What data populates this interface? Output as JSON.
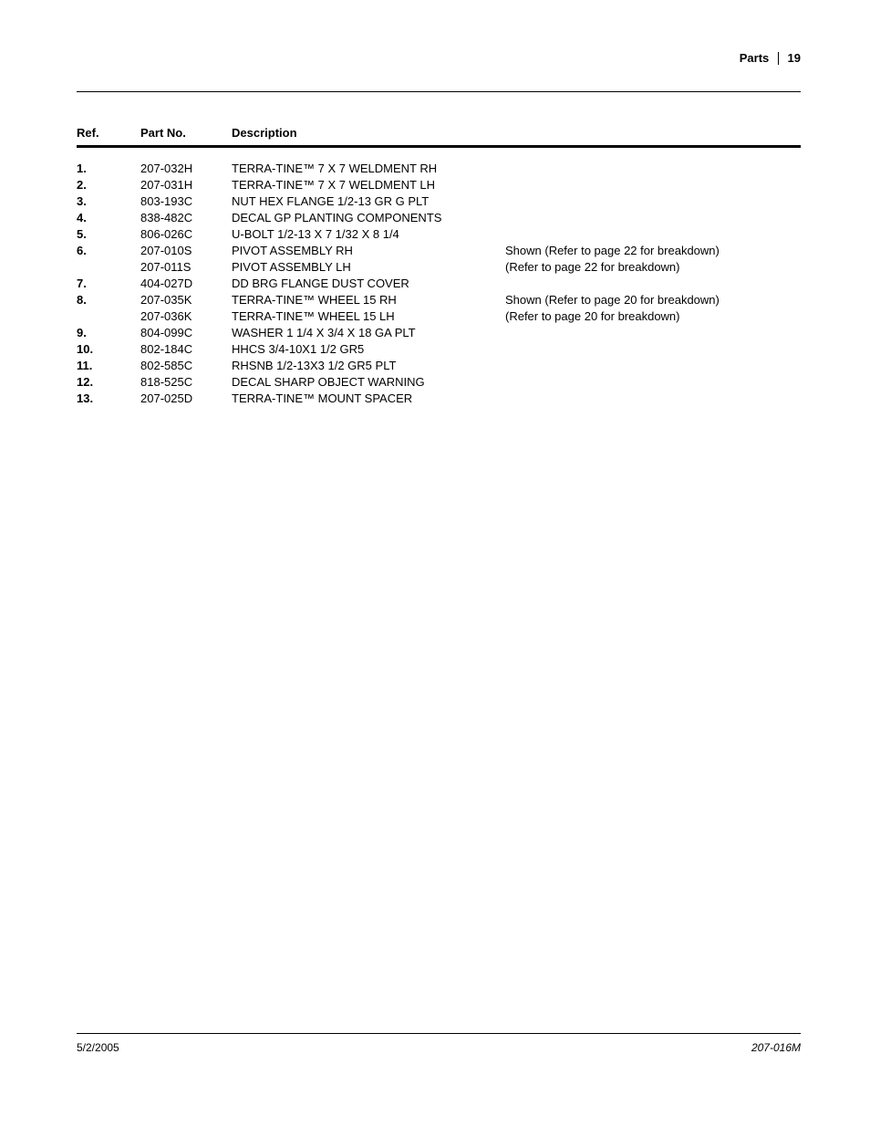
{
  "header": {
    "section": "Parts",
    "page": "19"
  },
  "columns": {
    "ref": "Ref.",
    "part": "Part No.",
    "desc": "Description"
  },
  "rows": [
    {
      "ref": "1.",
      "part": "207-032H",
      "desc": "TERRA-TINE™ 7 X 7 WELDMENT RH",
      "note": ""
    },
    {
      "ref": "2.",
      "part": "207-031H",
      "desc": "TERRA-TINE™ 7 X 7 WELDMENT LH",
      "note": ""
    },
    {
      "ref": "3.",
      "part": "803-193C",
      "desc": "NUT HEX FLANGE 1/2-13 GR G PLT",
      "note": ""
    },
    {
      "ref": "4.",
      "part": "838-482C",
      "desc": "DECAL GP PLANTING COMPONENTS",
      "note": ""
    },
    {
      "ref": "5.",
      "part": "806-026C",
      "desc": "U-BOLT 1/2-13 X 7 1/32 X 8 1/4",
      "note": ""
    },
    {
      "ref": "6.",
      "part": "207-010S",
      "desc": "PIVOT ASSEMBLY RH",
      "note": " Shown (Refer to page 22 for breakdown)"
    },
    {
      "ref": "",
      "part": "207-011S",
      "desc": "PIVOT ASSEMBLY LH",
      "note": "(Refer to page 22 for breakdown)"
    },
    {
      "ref": "7.",
      "part": "404-027D",
      "desc": "DD BRG FLANGE DUST COVER",
      "note": ""
    },
    {
      "ref": "8.",
      "part": "207-035K",
      "desc": "TERRA-TINE™ WHEEL 15 RH",
      "note": "Shown (Refer to page 20 for breakdown)"
    },
    {
      "ref": "",
      "part": "207-036K",
      "desc": "TERRA-TINE™ WHEEL 15 LH",
      "note": "(Refer to page 20 for breakdown)"
    },
    {
      "ref": "9.",
      "part": "804-099C",
      "desc": "WASHER 1 1/4 X 3/4 X 18 GA PLT",
      "note": ""
    },
    {
      "ref": "10.",
      "part": "802-184C",
      "desc": "HHCS 3/4-10X1 1/2 GR5",
      "note": ""
    },
    {
      "ref": "11.",
      "part": "802-585C",
      "desc": "RHSNB 1/2-13X3 1/2 GR5 PLT",
      "note": ""
    },
    {
      "ref": "12.",
      "part": "818-525C",
      "desc": "DECAL SHARP OBJECT WARNING",
      "note": ""
    },
    {
      "ref": "13.",
      "part": "207-025D",
      "desc": "TERRA-TINE™ MOUNT SPACER",
      "note": ""
    }
  ],
  "footer": {
    "date": "5/2/2005",
    "doc": "207-016M"
  }
}
